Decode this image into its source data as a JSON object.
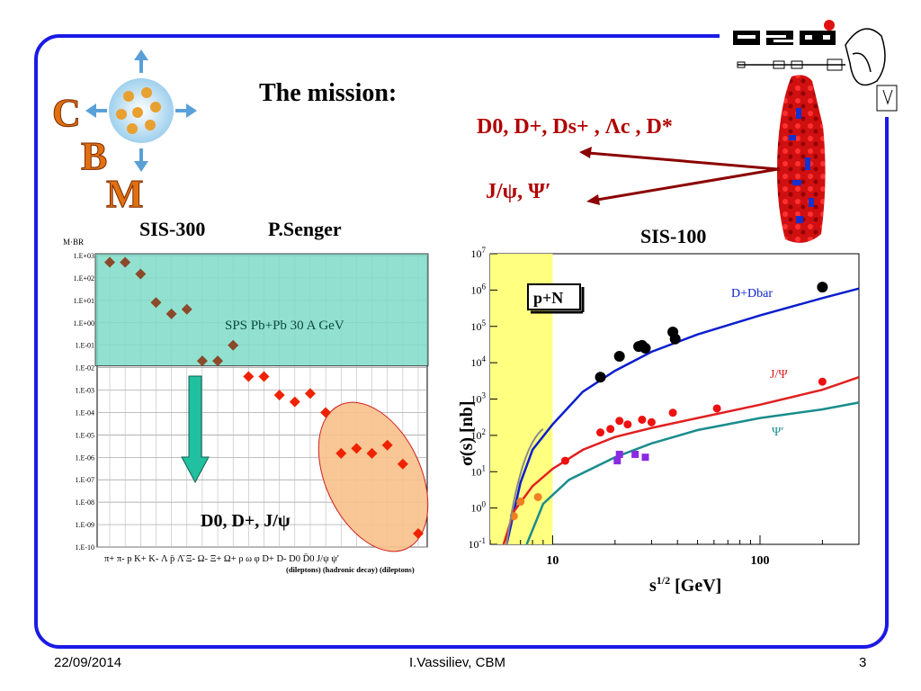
{
  "slide": {
    "title": "The mission:",
    "sis300_label": "SIS-300",
    "author_label": "P.Senger",
    "sis100_label": "SIS-100",
    "particles_line": "D0, D+, Ds+ , Λc , D*",
    "jpsi_line": "J/ψ, Ψ′",
    "cbm_letters": [
      "C",
      "B",
      "M"
    ]
  },
  "footer": {
    "date": "22/09/2014",
    "center": "I.Vassiliev, CBM",
    "page": "3"
  },
  "colors": {
    "frame": "#1a1ae6",
    "dark_red": "#b00000",
    "teal_box": "#7fdcc8",
    "orange_ellipse": "#f8c08a",
    "yellow_band": "#ffff80",
    "ddbar_curve": "#0a1ecc",
    "jpsi_curve": "#e02020",
    "psi_curve": "#1a8c8c"
  },
  "chart_data": [
    {
      "type": "scatter",
      "ylabel": "M·BR",
      "y_log": true,
      "y_ticks": [
        "1.E+03",
        "1.E+02",
        "1.E+01",
        "1.E+00",
        "1.E-01",
        "1.E-02",
        "1.E-03",
        "1.E-04",
        "1.E-05",
        "1.E-06",
        "1.E-07",
        "1.E-08",
        "1.E-09",
        "1.E-10"
      ],
      "ylim": [
        1e-10,
        1000.0
      ],
      "x_labels": [
        "π+",
        "π-",
        "p",
        "K+",
        "K-",
        "Λ",
        "p̄",
        "Λ̄",
        "Ξ-",
        "Ω-",
        "Ξ+",
        "Ω+",
        "ρ",
        "ω",
        "φ",
        "D+",
        "D-",
        "D0",
        "D̄0",
        "J/ψ",
        "ψ'"
      ],
      "x_tick_text": "π+ π-  p  K+ K-  Λ  p̄  Λ̄  Ξ-  Ω-  Ξ+ Ω+ ρ   ω   φ  D+ D-  D0 D̄0 J/ψ ψ'",
      "group_labels": "(dileptons) (hadronic decay) (dileptons)",
      "box_label": "SPS Pb+Pb 30 A GeV",
      "arrow_label": "D0, D+, J/ψ",
      "series": [
        {
          "name": "",
          "color": "#8b4a2b",
          "points": [
            [
              0,
              500
            ],
            [
              1,
              500
            ],
            [
              2,
              150
            ],
            [
              3,
              8
            ],
            [
              4,
              2.5
            ],
            [
              5,
              4
            ],
            [
              6,
              0.02
            ],
            [
              7,
              0.02
            ],
            [
              8,
              0.1
            ]
          ]
        },
        {
          "name": "",
          "color": "#ee2200",
          "points": [
            [
              9,
              0.004
            ],
            [
              10,
              0.004
            ],
            [
              11,
              0.0006
            ],
            [
              12,
              0.0003
            ],
            [
              13,
              0.0007
            ],
            [
              14,
              0.0001
            ],
            [
              15,
              1.5e-06
            ],
            [
              16,
              2.5e-06
            ],
            [
              17,
              1.5e-06
            ],
            [
              18,
              3.5e-06
            ],
            [
              19,
              5e-07
            ],
            [
              20,
              4e-10
            ]
          ]
        }
      ]
    },
    {
      "type": "line",
      "xlabel": "s1/2 [GeV]",
      "ylabel": "σ(s) [nb]",
      "x_log": true,
      "y_log": true,
      "xlim": [
        5,
        300
      ],
      "ylim": [
        0.1,
        10000000.0
      ],
      "x_ticks": [
        "10",
        "100"
      ],
      "y_ticks": [
        "10-1",
        "100",
        "101",
        "102",
        "103",
        "104",
        "105",
        "106",
        "107"
      ],
      "shaded_x_range": [
        5,
        10
      ],
      "box_label": "p+N",
      "series": [
        {
          "name": "D+Dbar",
          "color": "#0a1ecc",
          "curve": [
            [
              6.0,
              0.1
            ],
            [
              7,
              5
            ],
            [
              8,
              40
            ],
            [
              10,
              200
            ],
            [
              14,
              1600
            ],
            [
              20,
              6000
            ],
            [
              30,
              20000
            ],
            [
              50,
              60000
            ],
            [
              100,
              200000
            ],
            [
              200,
              600000
            ],
            [
              300,
              1100000
            ]
          ],
          "points": [
            [
              17,
              4000
            ],
            [
              21,
              15000
            ],
            [
              26,
              28000
            ],
            [
              27,
              30000
            ],
            [
              28,
              25000
            ],
            [
              38,
              70000
            ],
            [
              39,
              45000
            ],
            [
              200,
              1200000
            ]
          ]
        },
        {
          "name": "J/Ψ",
          "color": "#e02020",
          "curve": [
            [
              5.8,
              0.1
            ],
            [
              6.5,
              0.8
            ],
            [
              8,
              4
            ],
            [
              10,
              12
            ],
            [
              14,
              40
            ],
            [
              20,
              90
            ],
            [
              30,
              160
            ],
            [
              50,
              300
            ],
            [
              100,
              700
            ],
            [
              200,
              1800
            ],
            [
              300,
              4000
            ]
          ],
          "points": [
            [
              6.5,
              0.6
            ],
            [
              7,
              1.5
            ],
            [
              8.5,
              2
            ],
            [
              11.5,
              20
            ],
            [
              17,
              120
            ],
            [
              19,
              150
            ],
            [
              21,
              250
            ],
            [
              23,
              200
            ],
            [
              27,
              270
            ],
            [
              30,
              230
            ],
            [
              38,
              420
            ],
            [
              62,
              550
            ],
            [
              200,
              3000
            ]
          ]
        },
        {
          "name": "Ψ′",
          "color": "#1a8c8c",
          "curve": [
            [
              7.5,
              0.1
            ],
            [
              9,
              1.3
            ],
            [
              12,
              6
            ],
            [
              20,
              25
            ],
            [
              30,
              60
            ],
            [
              50,
              140
            ],
            [
              100,
              300
            ],
            [
              200,
              520
            ],
            [
              300,
              800
            ]
          ],
          "points": [
            [
              20.5,
              20
            ],
            [
              21,
              30
            ],
            [
              25,
              30
            ],
            [
              28,
              25
            ]
          ]
        }
      ]
    }
  ]
}
